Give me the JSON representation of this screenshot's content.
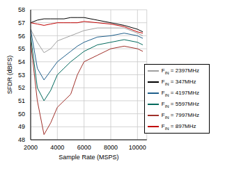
{
  "chart_data": {
    "type": "line",
    "x_label": "Sample Rate (MSPS)",
    "y_label": "SFDR (dBFS)",
    "x": [
      2000,
      2500,
      3000,
      3500,
      4000,
      4500,
      5000,
      5500,
      6000,
      7000,
      8000,
      9000,
      10000,
      10400
    ],
    "series": [
      {
        "name": "FIN = 347MHz",
        "color": "#000000",
        "values": [
          57.0,
          57.2,
          57.3,
          57.3,
          57.3,
          57.3,
          57.4,
          57.4,
          57.4,
          57.2,
          57.0,
          56.8,
          56.5,
          56.3
        ]
      },
      {
        "name": "FIN = 897MHz",
        "color": "#c00000",
        "values": [
          57.0,
          56.9,
          56.8,
          56.9,
          57.0,
          57.0,
          57.0,
          57.0,
          57.1,
          57.0,
          56.9,
          56.7,
          56.3,
          56.2
        ]
      },
      {
        "name": "FIN = 2397MHz",
        "color": "#a0a0a0",
        "values": [
          56.5,
          55.5,
          54.7,
          55.0,
          55.6,
          55.8,
          56.0,
          56.2,
          56.4,
          56.6,
          56.6,
          56.6,
          56.2,
          56.0
        ]
      },
      {
        "name": "FIN = 4197MHz",
        "color": "#1f5f8b",
        "values": [
          56.5,
          53.5,
          52.6,
          53.3,
          54.0,
          54.4,
          54.8,
          55.2,
          55.5,
          55.9,
          56.0,
          56.2,
          56.0,
          55.8
        ]
      },
      {
        "name": "FIN = 5597MHz",
        "color": "#00695c",
        "values": [
          56.0,
          52.0,
          51.0,
          51.8,
          53.0,
          53.5,
          54.0,
          54.4,
          54.8,
          55.3,
          55.5,
          55.7,
          55.5,
          55.3
        ]
      },
      {
        "name": "FIN = 7997MHz",
        "color": "#a0302a",
        "values": [
          55.5,
          51.0,
          48.4,
          49.3,
          50.5,
          51.0,
          51.5,
          53.0,
          54.0,
          54.5,
          55.0,
          55.2,
          55.0,
          54.8
        ]
      }
    ],
    "xlim": [
      2000,
      10700
    ],
    "xticks": [
      2000,
      4000,
      6000,
      8000,
      10000
    ],
    "ylim": [
      48,
      58
    ],
    "yticks": [
      48,
      49,
      50,
      51,
      52,
      53,
      54,
      55,
      56,
      57,
      58
    ],
    "grid": true,
    "legend": "lower right"
  }
}
